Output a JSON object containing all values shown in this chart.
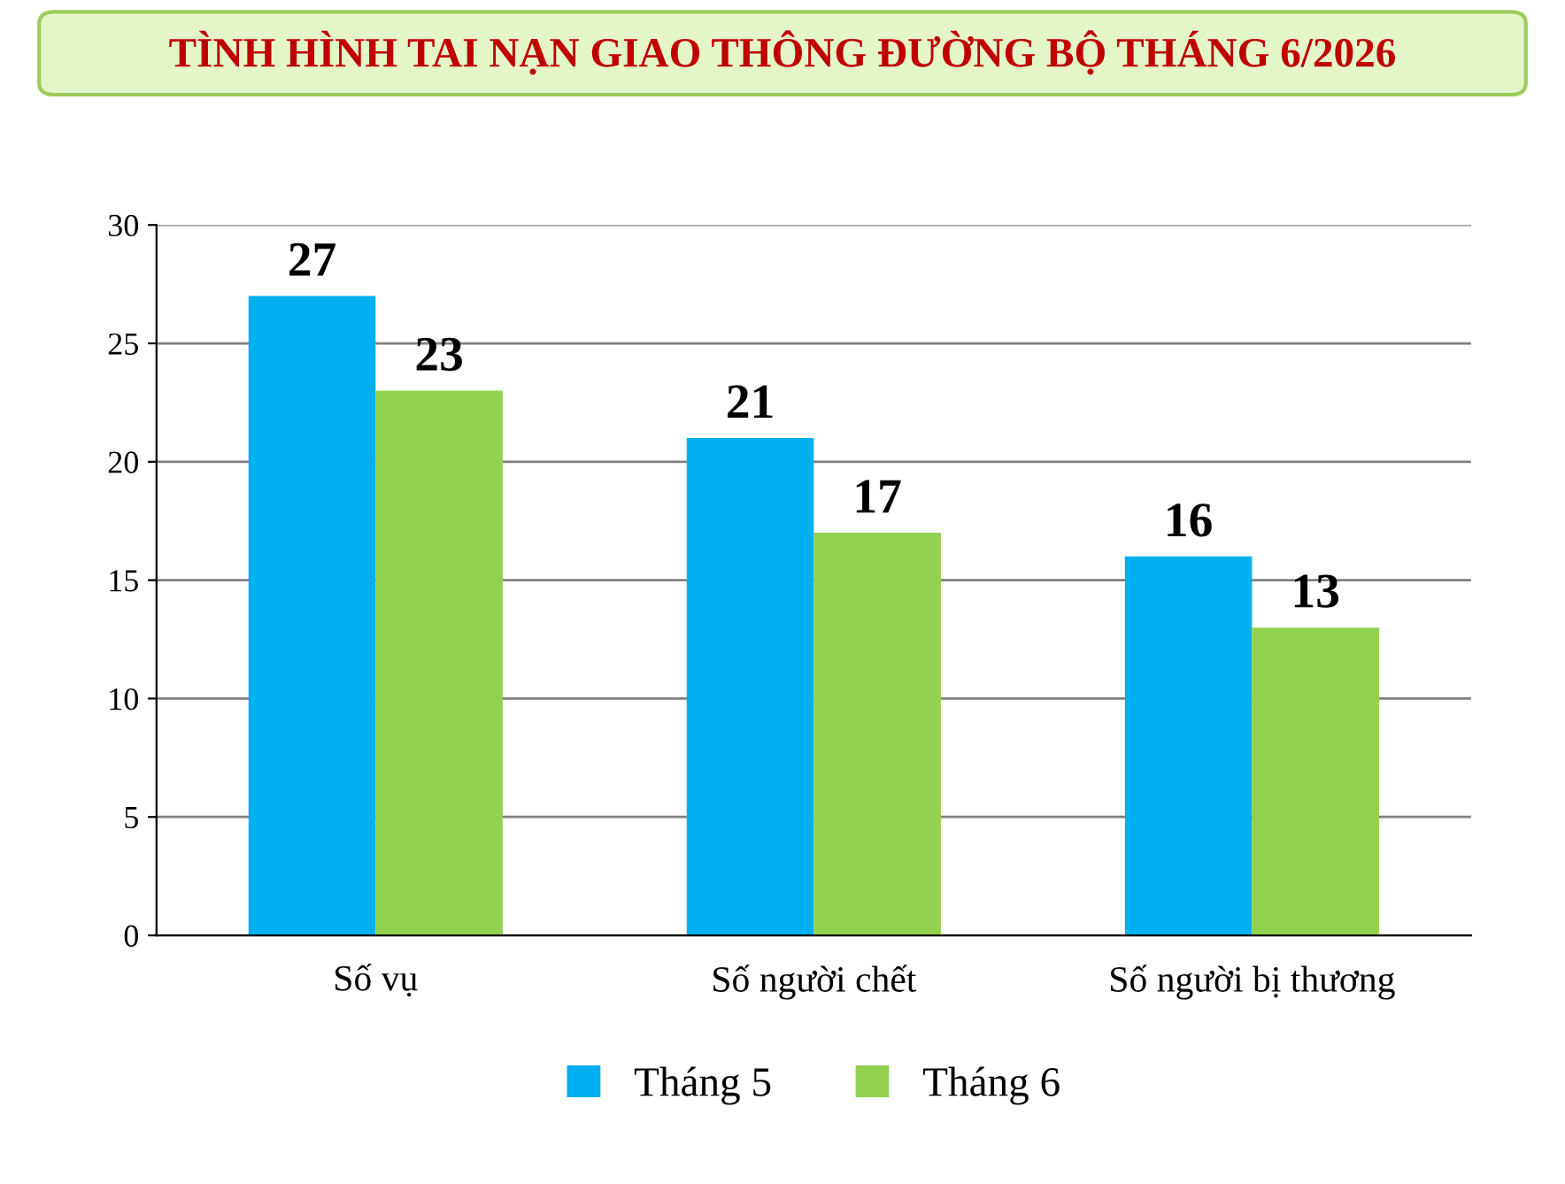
{
  "chart_data": {
    "type": "bar",
    "title": "TÌNH HÌNH TAI NẠN GIAO THÔNG ĐƯỜNG BỘ THÁNG 6/2026",
    "categories": [
      "Số vụ",
      "Số người chết",
      "Số người bị thương"
    ],
    "series": [
      {
        "name": "Tháng 5",
        "color": "#00b0f0",
        "values": [
          27,
          21,
          16
        ]
      },
      {
        "name": "Tháng 6",
        "color": "#92d050",
        "values": [
          23,
          17,
          13
        ]
      }
    ],
    "ylim": [
      0,
      30
    ],
    "yticks": [
      0,
      5,
      10,
      15,
      20,
      25,
      30
    ],
    "grid": "y",
    "legend": "bottom",
    "data_labels": true
  }
}
